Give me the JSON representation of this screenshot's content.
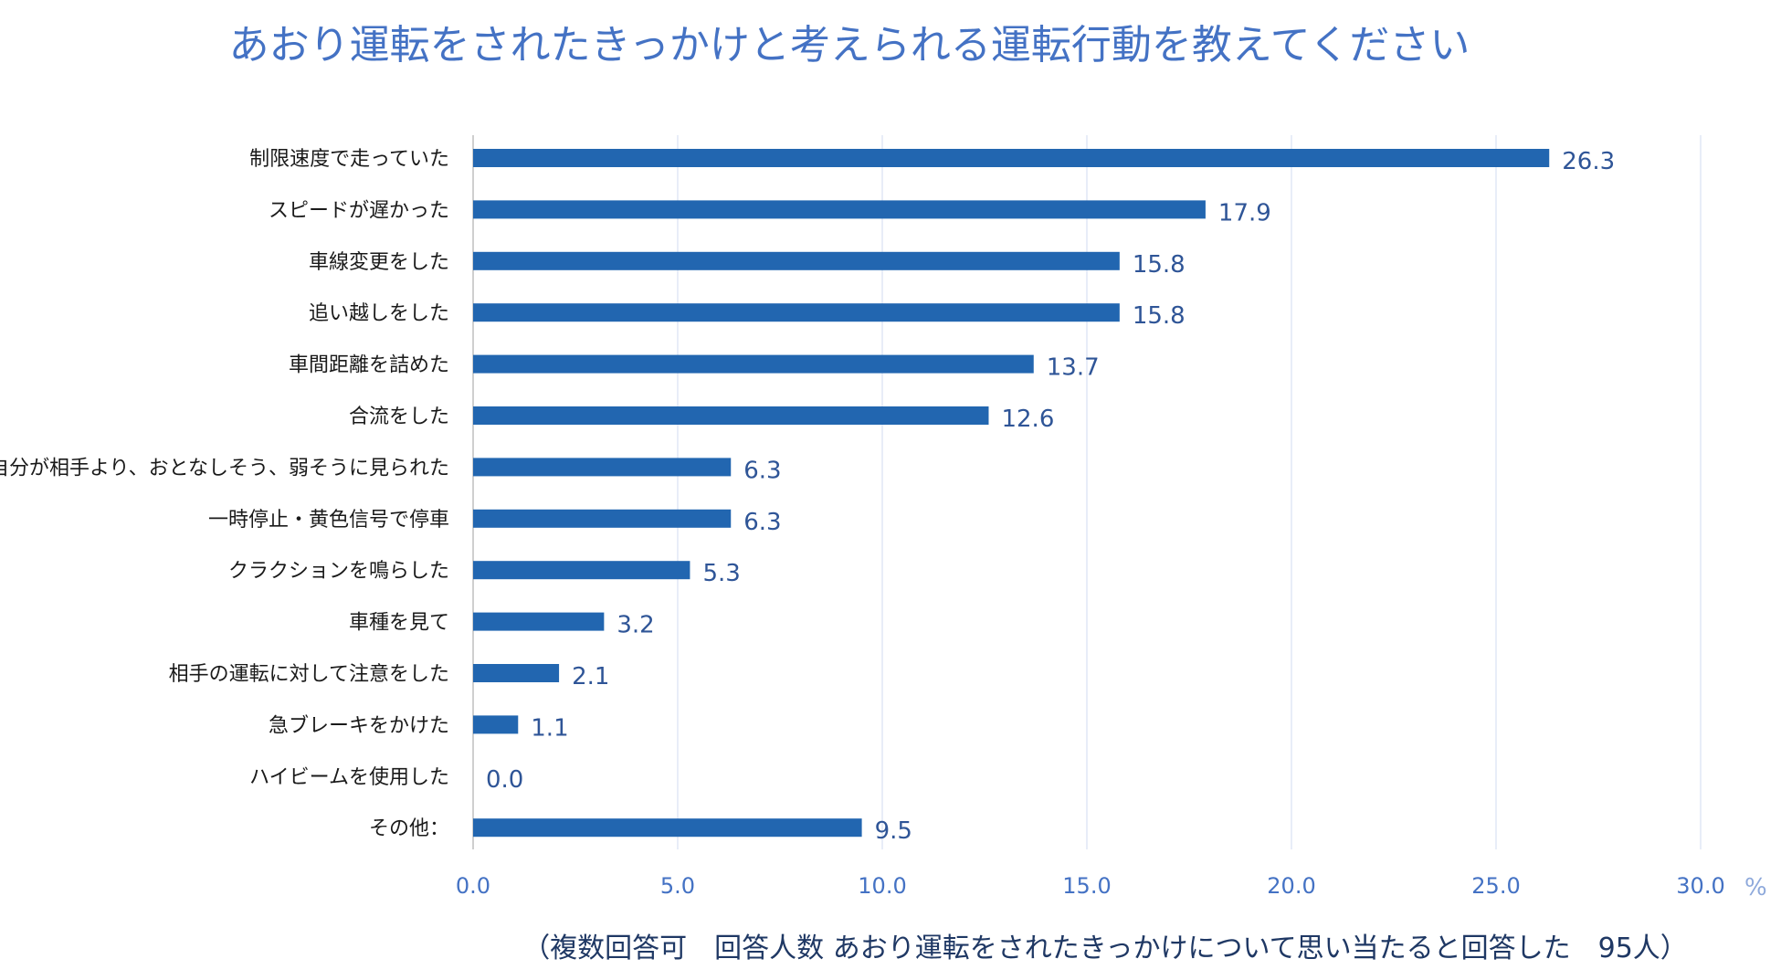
{
  "chart_data": {
    "type": "bar",
    "orientation": "horizontal",
    "title": "あおり運転をされたきっかけと考えられる運転行動を教えてください",
    "unit_label": "%",
    "xlim": [
      0,
      30
    ],
    "xticks": [
      0,
      5,
      10,
      15,
      20,
      25,
      30
    ],
    "xtick_labels": [
      "0.0",
      "5.0",
      "10.0",
      "15.0",
      "20.0",
      "25.0",
      "30.0"
    ],
    "categories": [
      "制限速度で走っていた",
      "スピードが遅かった",
      "車線変更をした",
      "追い越しをした",
      "車間距離を詰めた",
      "合流をした",
      "自分が相手より、おとなしそう、弱そうに見られた",
      "一時停止・黄色信号で停車",
      "クラクションを鳴らした",
      "車種を見て",
      "相手の運転に対して注意をした",
      "急ブレーキをかけた",
      "ハイビームを使用した",
      "その他："
    ],
    "values": [
      26.3,
      17.9,
      15.8,
      15.8,
      13.7,
      12.6,
      6.3,
      6.3,
      5.3,
      3.2,
      2.1,
      1.1,
      0.0,
      9.5
    ],
    "value_labels": [
      "26.3",
      "17.9",
      "15.8",
      "15.8",
      "13.7",
      "12.6",
      "6.3",
      "6.3",
      "5.3",
      "3.2",
      "2.1",
      "1.1",
      "0.0",
      "9.5"
    ],
    "footnote": "（複数回答可　回答人数 あおり運転をされたきっかけについて思い当たると回答した　95人）",
    "colors": {
      "bar": "#2266B0",
      "title": "#4472C4",
      "value": "#2F5597"
    }
  }
}
